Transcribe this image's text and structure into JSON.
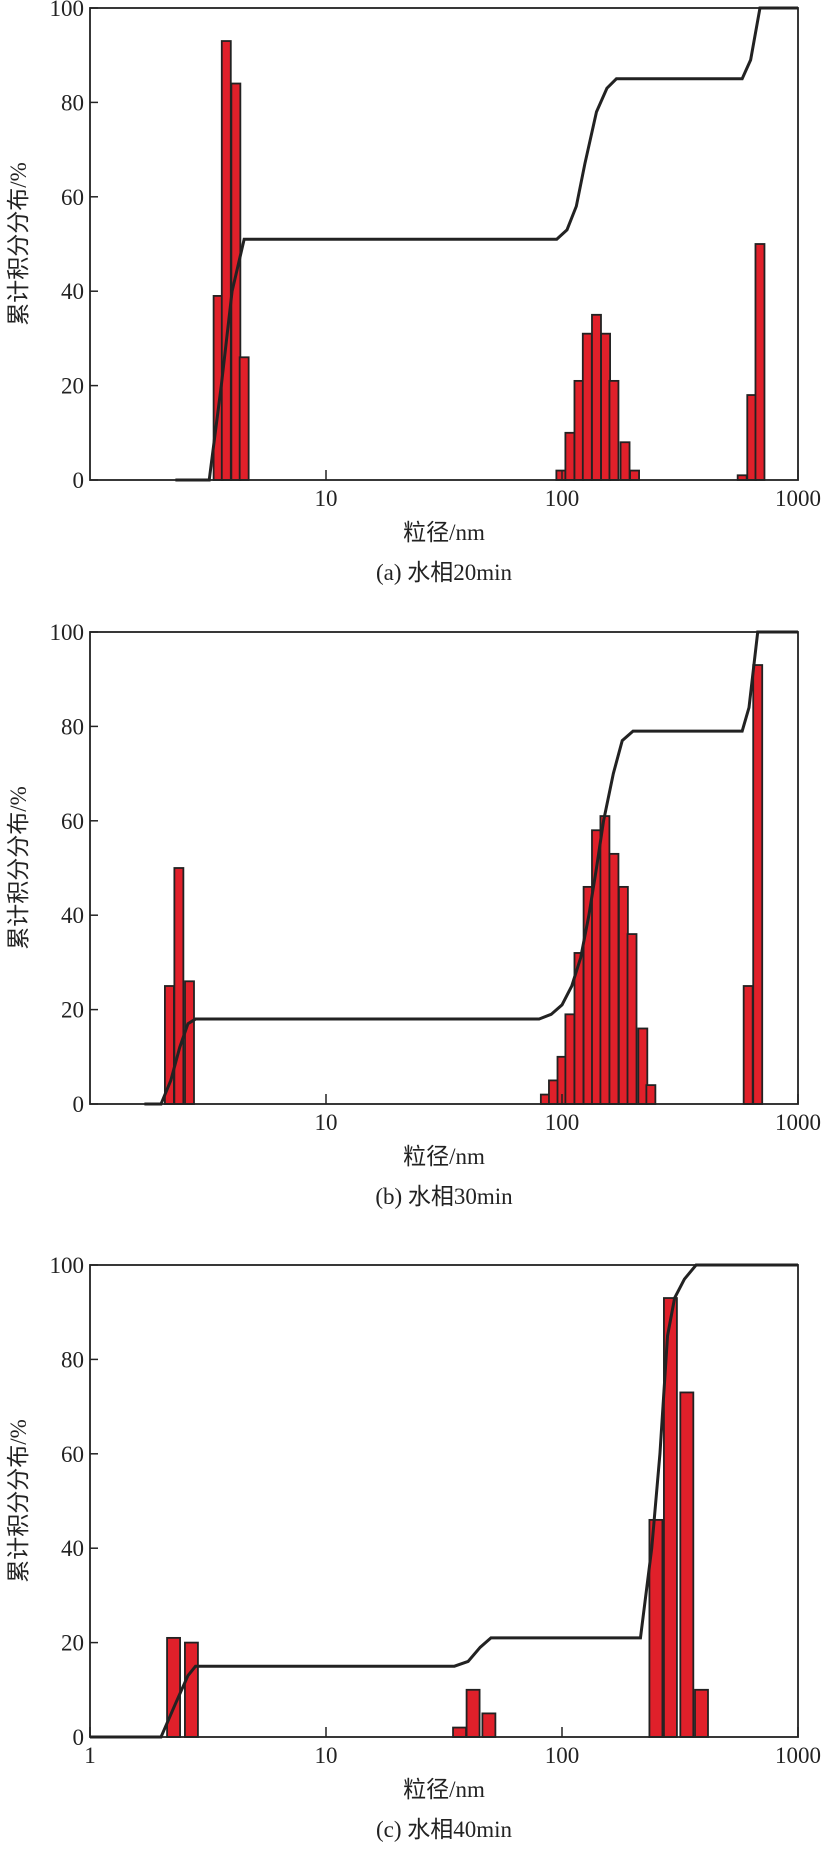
{
  "chart_data": [
    {
      "type": "bar",
      "caption": "(a) 水相20min",
      "xlabel": "粒径/nm",
      "ylabel": "累计积分分布/%",
      "xscale": "log",
      "xlim": [
        1,
        1000
      ],
      "xticks": [
        10,
        100,
        1000
      ],
      "ylim": [
        0,
        100
      ],
      "yticks": [
        0,
        20,
        40,
        60,
        80,
        100
      ],
      "series": [
        {
          "type": "bar",
          "color": "#e0202a",
          "x": [
            3.49,
            3.78,
            4.15,
            4.5,
            98.9,
            108,
            118,
            128,
            140,
            153,
            166,
            185,
            203,
            580,
            637,
            690
          ],
          "values": [
            39,
            93,
            84,
            26,
            2,
            10,
            21,
            31,
            35,
            31,
            21,
            8,
            2,
            1,
            18,
            50
          ]
        },
        {
          "type": "line",
          "color": "#222222",
          "x": [
            2.3,
            3.2,
            3.6,
            4.0,
            4.5,
            95,
            105,
            115,
            125,
            140,
            155,
            170,
            190,
            580,
            630,
            690,
            1000
          ],
          "values": [
            0,
            0,
            20,
            40,
            51,
            51,
            53,
            58,
            67,
            78,
            83,
            85,
            85,
            85,
            89,
            100,
            100
          ]
        }
      ]
    },
    {
      "type": "bar",
      "caption": "(b) 水相30min",
      "xlabel": "粒径/nm",
      "ylabel": "累计积分分布/%",
      "xscale": "log",
      "xlim": [
        1,
        1000
      ],
      "xticks": [
        10,
        100,
        1000
      ],
      "ylim": [
        0,
        100
      ],
      "yticks": [
        0,
        20,
        40,
        60,
        80,
        100
      ],
      "series": [
        {
          "type": "bar",
          "color": "#e0202a",
          "x": [
            2.17,
            2.38,
            2.64,
            85,
            92,
            100,
            108,
            118,
            129,
            140,
            152,
            166,
            182,
            198,
            220,
            238,
            615,
            675
          ],
          "values": [
            25,
            50,
            26,
            2,
            5,
            10,
            19,
            32,
            46,
            58,
            61,
            53,
            46,
            36,
            16,
            4,
            25,
            93
          ]
        },
        {
          "type": "line",
          "color": "#222222",
          "x": [
            1.7,
            2.0,
            2.2,
            2.4,
            2.6,
            2.8,
            70,
            80,
            90,
            100,
            110,
            120,
            130,
            140,
            150,
            165,
            180,
            200,
            220,
            580,
            620,
            675,
            1000
          ],
          "values": [
            0,
            0,
            5,
            12,
            17,
            18,
            18,
            18,
            19,
            21,
            25,
            31,
            40,
            50,
            60,
            70,
            77,
            79,
            79,
            79,
            84,
            100,
            100
          ]
        }
      ]
    },
    {
      "type": "bar",
      "caption": "(c) 水相40min",
      "xlabel": "粒径/nm",
      "ylabel": "累计积分分布/%",
      "xscale": "log",
      "xlim": [
        1,
        1000
      ],
      "xticks": [
        1,
        10,
        100,
        1000
      ],
      "ylim": [
        0,
        100
      ],
      "yticks": [
        0,
        20,
        40,
        60,
        80,
        100
      ],
      "series": [
        {
          "type": "bar",
          "color": "#e0202a",
          "x": [
            2.26,
            2.69,
            36.8,
            42,
            49,
            250,
            288,
            338,
            390
          ],
          "values": [
            21,
            20,
            2,
            10,
            5,
            46,
            93,
            73,
            10
          ]
        },
        {
          "type": "line",
          "color": "#222222",
          "x": [
            1,
            2,
            2.3,
            2.6,
            2.8,
            35,
            40,
            45,
            50,
            215,
            240,
            260,
            280,
            300,
            330,
            370,
            1000
          ],
          "values": [
            0,
            0,
            7,
            13,
            15,
            15,
            16,
            19,
            21,
            21,
            40,
            60,
            85,
            93,
            97,
            100,
            100
          ]
        }
      ]
    }
  ]
}
